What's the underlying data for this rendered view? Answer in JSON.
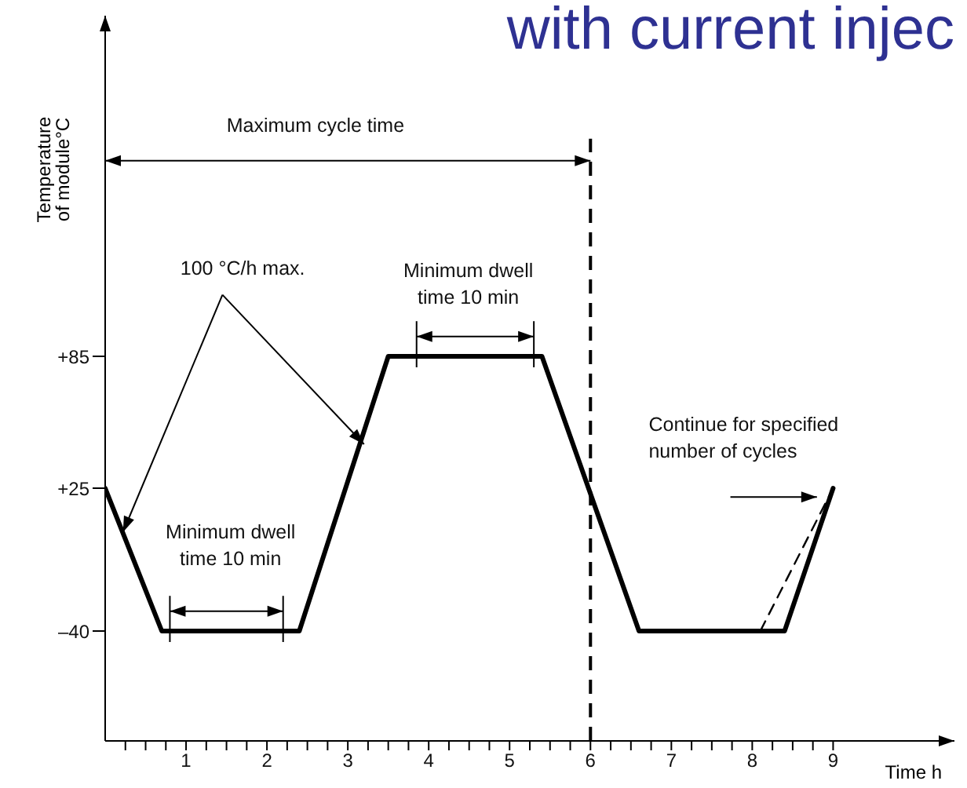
{
  "chart_data": {
    "type": "line",
    "title": "with current injec",
    "xlabel": "Time  h",
    "ylabel": "Temperature\nof module°C",
    "series": [
      {
        "color": "#000000",
        "line_style": "solid",
        "x": [
          0,
          0.7,
          2.4,
          3.5,
          5.4,
          6.6,
          8.4,
          9.0
        ],
        "values": [
          25,
          -40,
          -40,
          85,
          85,
          -40,
          -40,
          25
        ]
      },
      {
        "color": "#000000",
        "line_style": "dashed",
        "x": [
          8.1,
          9.0
        ],
        "values": [
          -40,
          25
        ]
      }
    ],
    "xlim": [
      0,
      10.5
    ],
    "ylim": [
      -90,
      240
    ],
    "xticks": [
      {
        "value": 0.25,
        "label": null
      },
      {
        "value": 0.5,
        "label": null
      },
      {
        "value": 0.75,
        "label": null
      },
      1,
      {
        "value": 1.25,
        "label": null
      },
      {
        "value": 1.5,
        "label": null
      },
      {
        "value": 1.75,
        "label": null
      },
      2,
      {
        "value": 2.25,
        "label": null
      },
      {
        "value": 2.5,
        "label": null
      },
      {
        "value": 2.75,
        "label": null
      },
      3,
      {
        "value": 3.25,
        "label": null
      },
      {
        "value": 3.5,
        "label": null
      },
      {
        "value": 3.75,
        "label": null
      },
      4,
      {
        "value": 4.25,
        "label": null
      },
      {
        "value": 4.5,
        "label": null
      },
      {
        "value": 4.75,
        "label": null
      },
      5,
      {
        "value": 5.25,
        "label": null
      },
      {
        "value": 5.5,
        "label": null
      },
      {
        "value": 5.75,
        "label": null
      },
      6,
      {
        "value": 6.25,
        "label": null
      },
      {
        "value": 6.5,
        "label": null
      },
      {
        "value": 6.75,
        "label": null
      },
      7,
      {
        "value": 7.25,
        "label": null
      },
      {
        "value": 7.5,
        "label": null
      },
      {
        "value": 7.75,
        "label": null
      },
      8,
      {
        "value": 8.25,
        "label": null
      },
      {
        "value": 8.5,
        "label": null
      },
      {
        "value": 8.75,
        "label": null
      },
      9
    ],
    "yticks": [
      {
        "value": -40,
        "label": "–40"
      },
      {
        "value": 25,
        "label": "+25"
      },
      {
        "value": 85,
        "label": "+85"
      }
    ],
    "ref_lines": [
      {
        "axis": "x",
        "value": 6,
        "color": "#000000",
        "line_style": "dashed"
      }
    ],
    "annotations": [
      "Maximum cycle time",
      {
        "text": "100 °C/h max.",
        "x": 3.2,
        "y": 45
      },
      "Minimum dwell\ntime 10 min",
      "Minimum dwell\ntime 10 min",
      "Continue for specified\nnumber of cycles"
    ],
    "grid": false,
    "legend": false,
    "marker": "none"
  }
}
